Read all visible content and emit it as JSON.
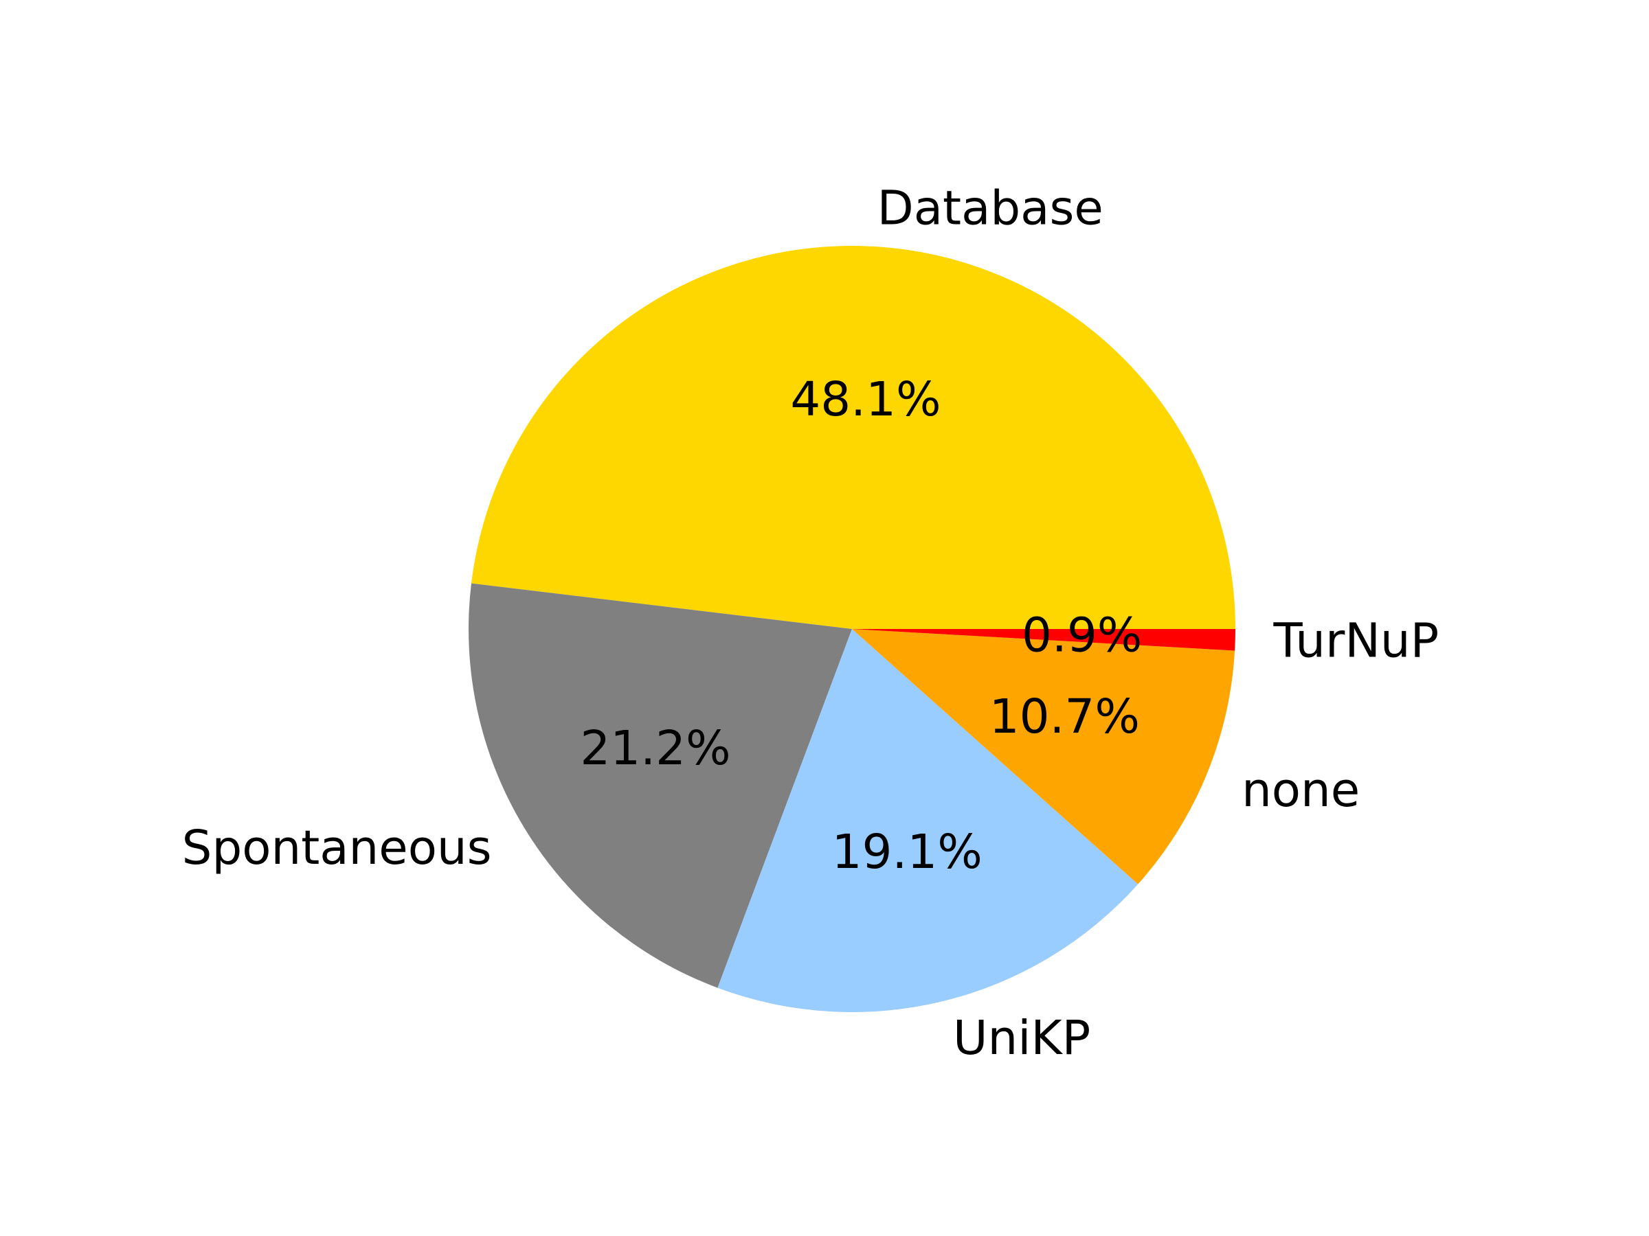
{
  "chart_data": {
    "type": "pie",
    "start_angle_deg": 0,
    "direction": "counterclockwise",
    "slices": [
      {
        "label": "Database",
        "percent": 48.1,
        "pct_text": "48.1%",
        "color": "#FFD700"
      },
      {
        "label": "Spontaneous",
        "percent": 21.2,
        "pct_text": "21.2%",
        "color": "#808080"
      },
      {
        "label": "UniKP",
        "percent": 19.1,
        "pct_text": "19.1%",
        "color": "#99CCFF"
      },
      {
        "label": "none",
        "percent": 10.7,
        "pct_text": "10.7%",
        "color": "#FFA500"
      },
      {
        "label": "TurNuP",
        "percent": 0.9,
        "pct_text": "0.9%",
        "color": "#FF0000"
      }
    ]
  }
}
